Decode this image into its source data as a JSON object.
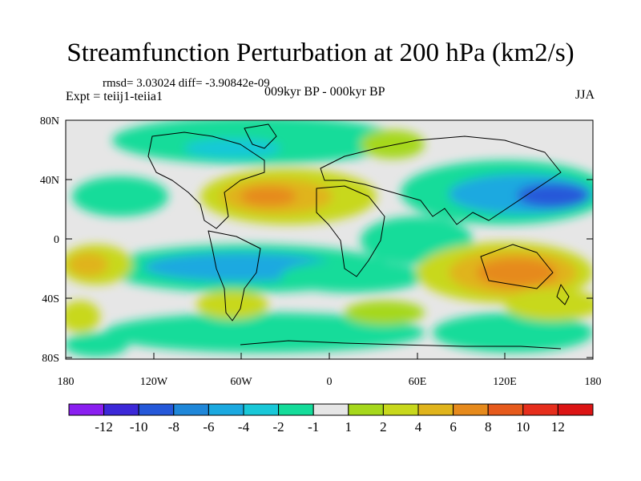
{
  "title": "Streamfunction Perturbation at 200 hPa (km2/s)",
  "stats": "rmsd= 3.03024 diff= -3.90842e-09",
  "expt": "Expt = teiij1-teiia1",
  "period": "009kyr BP - 000kyr BP",
  "season": "JJA",
  "lat_ticks": [
    "80N",
    "40N",
    "0",
    "40S",
    "80S"
  ],
  "lon_ticks": [
    "180",
    "120W",
    "60W",
    "0",
    "60E",
    "120E",
    "180"
  ],
  "colorbar": {
    "labels": [
      "-12",
      "-10",
      "-8",
      "-6",
      "-4",
      "-2",
      "-1",
      "1",
      "2",
      "4",
      "6",
      "8",
      "10",
      "12"
    ],
    "colors": [
      "#8a1ff0",
      "#3c28d8",
      "#2558d9",
      "#1f87d9",
      "#1ba9e0",
      "#19c8d8",
      "#14dc9a",
      "#e6e6e6",
      "#a6d81c",
      "#c8d81c",
      "#e0b41c",
      "#e68a1c",
      "#e65a1c",
      "#e62e1c",
      "#dc1414"
    ]
  }
}
